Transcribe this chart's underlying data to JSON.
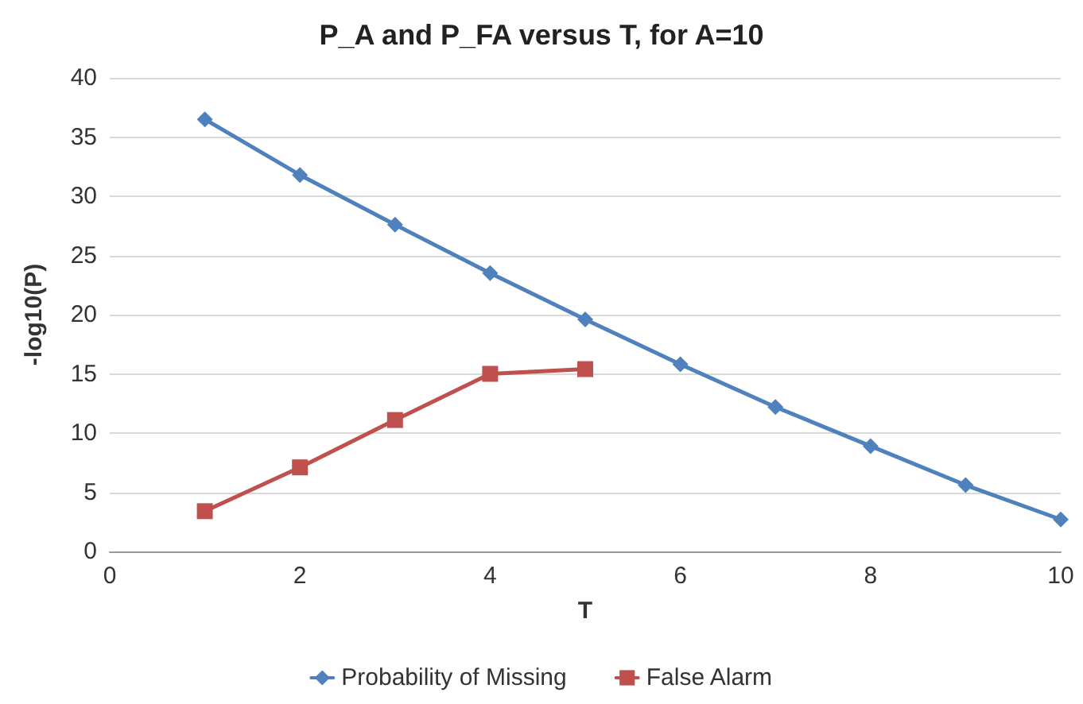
{
  "chart_data": {
    "type": "line",
    "title": "P_A and P_FA versus T, for A=10",
    "xlabel": "T",
    "ylabel": "-log10(P)",
    "xlim": [
      0,
      10
    ],
    "xticks": [
      0,
      2,
      4,
      6,
      8,
      10
    ],
    "ylim": [
      0,
      40
    ],
    "yticks": [
      0,
      5,
      10,
      15,
      20,
      25,
      30,
      35,
      40
    ],
    "grid": "y",
    "legend": "bottom",
    "line_style": "solid",
    "series": [
      {
        "name": "Probability of Missing",
        "color": "#4f81bd",
        "marker": "diamond",
        "x": [
          1,
          2,
          3,
          4,
          5,
          6,
          7,
          8,
          9,
          10
        ],
        "values": [
          36.5,
          31.8,
          27.6,
          23.5,
          19.6,
          15.8,
          12.2,
          8.9,
          5.6,
          2.7
        ]
      },
      {
        "name": "False Alarm",
        "color": "#c0504d",
        "marker": "square",
        "x": [
          1,
          2,
          3,
          4,
          5
        ],
        "values": [
          3.4,
          7.1,
          11.1,
          15.0,
          15.4
        ]
      }
    ]
  }
}
